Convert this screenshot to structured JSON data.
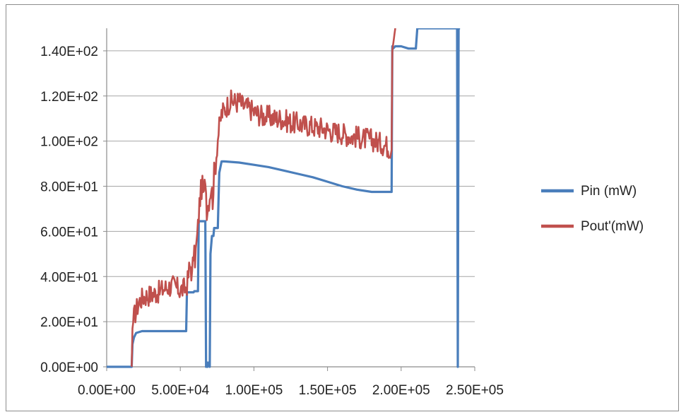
{
  "chart_data": {
    "type": "line",
    "title": "",
    "xlabel": "",
    "ylabel": "",
    "xlim": [
      0,
      250000
    ],
    "ylim": [
      0,
      150
    ],
    "x_ticks": [
      0,
      50000,
      100000,
      150000,
      200000,
      250000
    ],
    "x_tick_labels": [
      "0.00E+00",
      "5.00E+04",
      "1.00E+05",
      "1.50E+05",
      "2.00E+05",
      "2.50E+05"
    ],
    "y_ticks": [
      0,
      20,
      40,
      60,
      80,
      100,
      120,
      140
    ],
    "y_tick_labels": [
      "0.00E+00",
      "2.00E+01",
      "4.00E+01",
      "6.00E+01",
      "8.00E+01",
      "1.00E+02",
      "1.20E+02",
      "1.40E+02"
    ],
    "grid": true,
    "legend_position": "right",
    "series": [
      {
        "name": "Pin (mW)",
        "color": "#4a7ebb",
        "x": [
          0,
          17000,
          17500,
          18500,
          20000,
          24000,
          30000,
          40000,
          54000,
          54500,
          59000,
          59500,
          62000,
          62500,
          67000,
          67500,
          68000,
          68500,
          69500,
          70000,
          70500,
          71500,
          72500,
          73000,
          75500,
          76000,
          76500,
          78000,
          80000,
          90000,
          100000,
          110000,
          120000,
          130000,
          140000,
          150000,
          160000,
          170000,
          180000,
          190000,
          193500,
          194000,
          194500,
          196000,
          200000,
          205000,
          210000,
          211000,
          211500,
          238000,
          238500,
          239000,
          240000
        ],
        "y": [
          0,
          0,
          10,
          13,
          15,
          15.8,
          15.8,
          15.8,
          15.8,
          33,
          33,
          33.5,
          33.5,
          64.5,
          64.5,
          0,
          2,
          0,
          2,
          0,
          50,
          58,
          58,
          61.5,
          61.5,
          75,
          86,
          91,
          91,
          90.5,
          89.5,
          88.5,
          87,
          85.5,
          84,
          82,
          80,
          78.5,
          77.5,
          77.5,
          77.5,
          142,
          141,
          142,
          142,
          141,
          141,
          150,
          150,
          150,
          0,
          150,
          150
        ]
      },
      {
        "name": "Pout'(mW)",
        "color": "#c0504d",
        "x": [
          17000,
          17500,
          18500,
          20000,
          22000,
          25000,
          30000,
          35000,
          40000,
          45000,
          50000,
          54000,
          55000,
          56000,
          57000,
          58000,
          59000,
          60000,
          61000,
          62000,
          63000,
          64000,
          65000,
          66000,
          67000,
          68000,
          69000,
          70000,
          71000,
          72000,
          73000,
          74000,
          75000,
          76000,
          77000,
          78000,
          80000,
          82000,
          85000,
          88000,
          90000,
          92000,
          95000,
          98000,
          100000,
          103000,
          106000,
          110000,
          114000,
          118000,
          122000,
          126000,
          130000,
          134000,
          138000,
          142000,
          146000,
          150000,
          154000,
          158000,
          162000,
          166000,
          170000,
          174000,
          178000,
          182000,
          186000,
          190000,
          192000,
          193500,
          194000,
          195000,
          196000
        ],
        "y": [
          0,
          17,
          22,
          25,
          29,
          31,
          32,
          33,
          35,
          36,
          34,
          35,
          38,
          43,
          45,
          40,
          50,
          48,
          54,
          62,
          72,
          78,
          80,
          75,
          85,
          70,
          72,
          76,
          80,
          74,
          86,
          90,
          98,
          104,
          108,
          112,
          114,
          116,
          118,
          117,
          118,
          116,
          115,
          114,
          113,
          112,
          111,
          111,
          110,
          110,
          109,
          108,
          108,
          107,
          107,
          106,
          106,
          105,
          104,
          104,
          103,
          102,
          102,
          101,
          101,
          100,
          99,
          98,
          97,
          96,
          140,
          145,
          150
        ]
      }
    ]
  }
}
